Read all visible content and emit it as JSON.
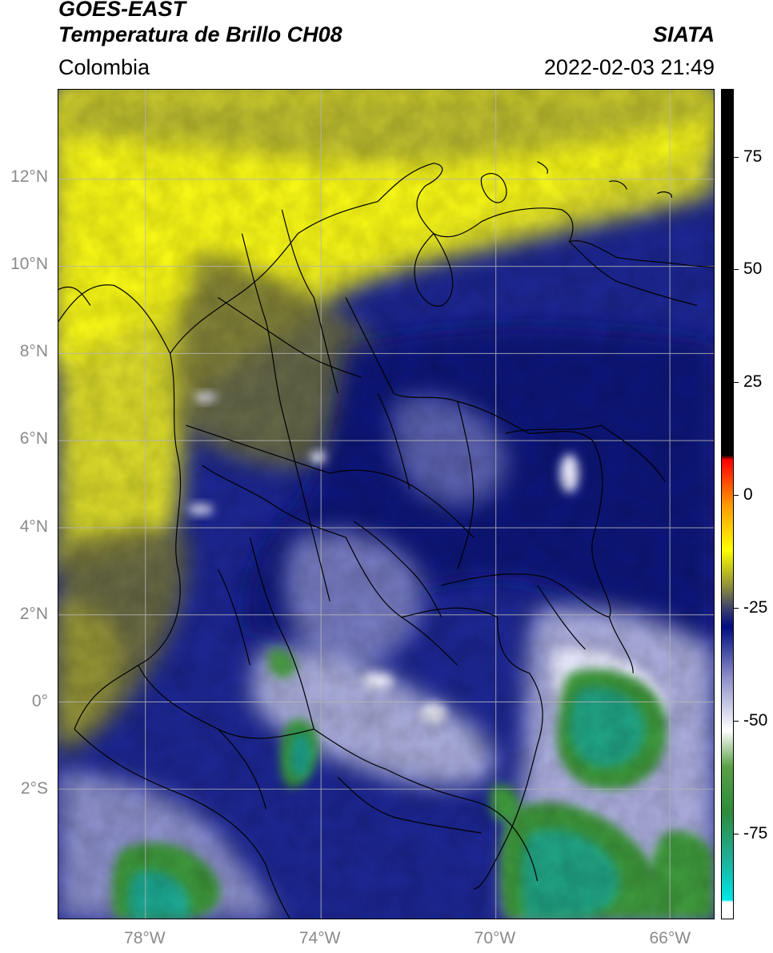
{
  "header": {
    "satellite": "GOES-EAST",
    "product": "Temperatura de Brillo CH08",
    "organization": "SIATA",
    "region": "Colombia",
    "datetime": "2022-02-03 21:49"
  },
  "map": {
    "latitude_labels": [
      {
        "text": "12°N",
        "lat": 12
      },
      {
        "text": "10°N",
        "lat": 10
      },
      {
        "text": "8°N",
        "lat": 8
      },
      {
        "text": "6°N",
        "lat": 6
      },
      {
        "text": "4°N",
        "lat": 4
      },
      {
        "text": "2°N",
        "lat": 2
      },
      {
        "text": "0°",
        "lat": 0
      },
      {
        "text": "2°S",
        "lat": -2
      }
    ],
    "longitude_labels": [
      {
        "text": "78°W",
        "lon": -78
      },
      {
        "text": "74°W",
        "lon": -74
      },
      {
        "text": "70°W",
        "lon": -70
      },
      {
        "text": "66°W",
        "lon": -66
      }
    ],
    "colors": {
      "grid": "#b5b5b5",
      "boundaries": "#000000"
    }
  },
  "colorbar": {
    "tick_labels": [
      {
        "text": "75",
        "value": 75
      },
      {
        "text": "50",
        "value": 50
      },
      {
        "text": "25",
        "value": 25
      },
      {
        "text": "0",
        "value": 0
      },
      {
        "text": "-25",
        "value": -25
      },
      {
        "text": "-50",
        "value": -50
      },
      {
        "text": "-75",
        "value": -75
      }
    ],
    "min": -94,
    "max": 90,
    "color_stops": [
      {
        "value": -94,
        "color": "#ffffff"
      },
      {
        "value": -90,
        "color": "#ffffff"
      },
      {
        "value": -89.5,
        "color": "#00e5e5"
      },
      {
        "value": -80,
        "color": "#1fae96"
      },
      {
        "value": -70,
        "color": "#2e8b3a"
      },
      {
        "value": -60,
        "color": "#5aa046"
      },
      {
        "value": -52,
        "color": "#ffffff"
      },
      {
        "value": -40,
        "color": "#8a8dc8"
      },
      {
        "value": -29,
        "color": "#000c80"
      },
      {
        "value": -25,
        "color": "#3a3f6e"
      },
      {
        "value": -20,
        "color": "#8f8f3a"
      },
      {
        "value": -12,
        "color": "#ffff00"
      },
      {
        "value": -2,
        "color": "#ff9900"
      },
      {
        "value": 8,
        "color": "#ff0000"
      },
      {
        "value": 9,
        "color": "#000000"
      },
      {
        "value": 90,
        "color": "#000000"
      }
    ]
  }
}
